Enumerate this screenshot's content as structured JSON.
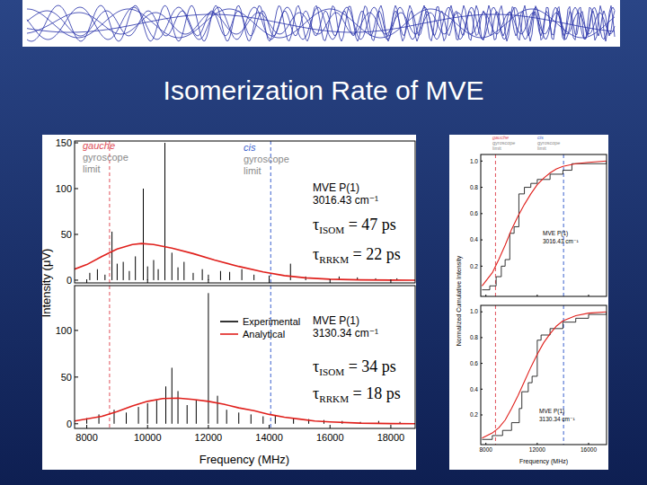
{
  "title": "Isomerization Rate of MVE",
  "chart_data": [
    {
      "type": "bar",
      "xlim": [
        7600,
        18800
      ],
      "ylim": [
        -3,
        152
      ],
      "xticks": [
        8000,
        10000,
        12000,
        14000,
        16000,
        18000
      ],
      "yticks": [
        0,
        50,
        100,
        150
      ],
      "tick_labels": "y",
      "y_label": "Intensity (μV)",
      "vlines": [
        {
          "value": 8750,
          "label": [
            "gauche",
            "gyroscope",
            "limit"
          ],
          "color": "#e0505a"
        },
        {
          "value": 14050,
          "label": [
            "cis",
            "gyroscope",
            "limit"
          ],
          "color": "#3a5fcd"
        }
      ],
      "annotations": [
        {
          "text": "MVE P(1)"
        },
        {
          "text": "3016.43 cm⁻¹"
        },
        {
          "symbol": "τ",
          "subscript": "ISOM",
          "text": "= 47 ps"
        },
        {
          "symbol": "τ",
          "subscript": "RRKM",
          "text": "= 22 ps"
        }
      ],
      "series": [
        {
          "type": "bar",
          "color": "#000000",
          "x": [
            8100,
            8350,
            8600,
            8830,
            9000,
            9200,
            9400,
            9600,
            9860,
            10000,
            10200,
            10350,
            10570,
            10800,
            11000,
            11200,
            11500,
            11800,
            12000,
            12400,
            12700,
            13100,
            13500,
            14000,
            14700,
            15200,
            16300,
            16900,
            17500,
            18200
          ],
          "values": [
            8,
            12,
            6,
            53,
            18,
            20,
            10,
            26,
            100,
            15,
            22,
            12,
            150,
            30,
            14,
            20,
            8,
            12,
            6,
            10,
            9,
            12,
            6,
            5,
            18,
            4,
            4,
            3,
            2,
            2
          ]
        },
        {
          "type": "line",
          "color": "#e0201c",
          "line_style": "solid",
          "x": [
            7600,
            8000,
            8500,
            9000,
            9500,
            9800,
            10200,
            10800,
            11500,
            12200,
            13000,
            13800,
            14500,
            15200,
            16000,
            17000,
            18000,
            18800
          ],
          "values": [
            12,
            17,
            26,
            34,
            39,
            40,
            39,
            35,
            29,
            22,
            15,
            9,
            5,
            2.5,
            1,
            0.3,
            0.1,
            0
          ]
        }
      ]
    },
    {
      "type": "bar",
      "xlim": [
        7600,
        18800
      ],
      "ylim": [
        -5,
        148
      ],
      "xticks": [
        8000,
        10000,
        12000,
        14000,
        16000,
        18000
      ],
      "yticks": [
        0,
        50,
        100
      ],
      "x_label": "Frequency (MHz)",
      "legend": "top",
      "vlines": [
        {
          "value": 8750,
          "color": "#e0505a"
        },
        {
          "value": 14050,
          "color": "#3a5fcd"
        }
      ],
      "annotations": [
        {
          "text": "MVE P(1)"
        },
        {
          "text": "3130.34 cm⁻¹"
        },
        {
          "symbol": "τ",
          "subscript": "ISOM",
          "text": "= 34 ps"
        },
        {
          "symbol": "τ",
          "subscript": "RRKM",
          "text": "= 18 ps"
        }
      ],
      "series": [
        {
          "name": "Experimental",
          "type": "bar",
          "color": "#000000",
          "x": [
            8000,
            8400,
            8900,
            9300,
            9700,
            10000,
            10300,
            10600,
            10800,
            11000,
            11300,
            11600,
            12000,
            12300,
            12600,
            13000,
            13400,
            13800,
            14200,
            14800,
            15300,
            15800,
            16400,
            17000,
            17600,
            18300
          ],
          "values": [
            6,
            10,
            15,
            12,
            18,
            22,
            25,
            40,
            60,
            35,
            20,
            25,
            140,
            30,
            15,
            12,
            10,
            8,
            9,
            6,
            5,
            4,
            3,
            2,
            3,
            2
          ]
        },
        {
          "name": "Analytical",
          "type": "line",
          "color": "#e0201c",
          "line_style": "solid",
          "x": [
            7600,
            8500,
            9000,
            9500,
            10000,
            10500,
            11000,
            11500,
            12000,
            12500,
            13000,
            13500,
            14000,
            14500,
            15000,
            15500,
            16000,
            17000,
            18000,
            18800
          ],
          "values": [
            3,
            8,
            13,
            19,
            24,
            27,
            27.5,
            26,
            24,
            21,
            17,
            14,
            10,
            7,
            5,
            3,
            2,
            0.7,
            0.2,
            0.1
          ]
        }
      ]
    },
    {
      "type": "line",
      "xlim": [
        7600,
        17400
      ],
      "ylim": [
        -0.03,
        1.05
      ],
      "xticks": [
        8000,
        12000,
        16000
      ],
      "yticks": [
        0.2,
        0.4,
        0.6,
        0.8,
        {
          "value": 1,
          "label": "1.0"
        }
      ],
      "tick_labels": "y",
      "y_label": "Normalized Cumulative Intensity",
      "vlines": [
        {
          "value": 8750,
          "label": [
            "gauche",
            "gyroscope",
            "limit"
          ],
          "color": "#e0505a"
        },
        {
          "value": 14050,
          "label": [
            "cis",
            "gyroscope",
            "limit"
          ],
          "color": "#3a5fcd"
        }
      ],
      "annotations": [
        {
          "text": "MVE P(1)"
        },
        {
          "text": "3016.43 cm⁻¹"
        }
      ],
      "series": [
        {
          "type": "line",
          "color": "#000000",
          "line_style": "step",
          "x": [
            7700,
            8300,
            8800,
            9200,
            9500,
            9860,
            10200,
            10570,
            11000,
            11500,
            12000,
            13000,
            14000,
            14700,
            17400
          ],
          "values": [
            0.02,
            0.05,
            0.12,
            0.2,
            0.25,
            0.45,
            0.5,
            0.75,
            0.8,
            0.83,
            0.86,
            0.9,
            0.93,
            0.98,
            1.0
          ]
        },
        {
          "type": "line",
          "color": "#e0201c",
          "line_style": "solid",
          "x": [
            7700,
            8500,
            9000,
            9500,
            10000,
            10500,
            11000,
            11500,
            12000,
            12500,
            13000,
            13500,
            14000,
            15000,
            16000,
            17400
          ],
          "values": [
            0.05,
            0.15,
            0.25,
            0.36,
            0.48,
            0.58,
            0.67,
            0.75,
            0.82,
            0.87,
            0.91,
            0.94,
            0.96,
            0.98,
            0.99,
            1.0
          ]
        }
      ]
    },
    {
      "type": "line",
      "xlim": [
        7600,
        17400
      ],
      "ylim": [
        -0.03,
        1.05
      ],
      "xticks": [
        8000,
        12000,
        16000
      ],
      "yticks": [
        0.2,
        0.4,
        0.6,
        0.8,
        {
          "value": 1,
          "label": "1.0"
        }
      ],
      "x_label": "Frequency (MHz)",
      "vlines": [
        {
          "value": 8750,
          "color": "#e0505a"
        },
        {
          "value": 14050,
          "color": "#3a5fcd"
        }
      ],
      "annotations": [
        {
          "text": "MVE P(1)"
        },
        {
          "text": "3130.34 cm⁻¹"
        }
      ],
      "series": [
        {
          "type": "line",
          "color": "#000000",
          "line_style": "step",
          "x": [
            7700,
            8500,
            9300,
            10000,
            10600,
            10800,
            11300,
            11600,
            12000,
            12300,
            13000,
            14000,
            15000,
            16000,
            17400
          ],
          "values": [
            0.01,
            0.04,
            0.08,
            0.14,
            0.25,
            0.38,
            0.45,
            0.5,
            0.78,
            0.82,
            0.87,
            0.92,
            0.95,
            0.98,
            1.0
          ]
        },
        {
          "type": "line",
          "color": "#e0201c",
          "line_style": "solid",
          "x": [
            7700,
            8500,
            9000,
            9500,
            10000,
            10500,
            11000,
            11500,
            12000,
            12500,
            13000,
            13500,
            14000,
            15000,
            16000,
            17400
          ],
          "values": [
            0.02,
            0.06,
            0.1,
            0.16,
            0.25,
            0.35,
            0.46,
            0.57,
            0.67,
            0.76,
            0.83,
            0.89,
            0.93,
            0.97,
            0.99,
            1.0
          ]
        }
      ]
    }
  ]
}
